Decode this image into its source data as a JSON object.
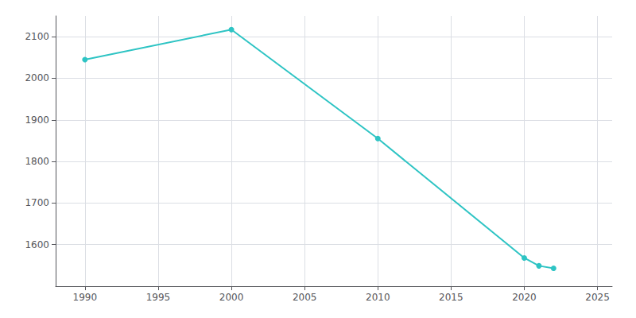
{
  "chart_data": {
    "type": "line",
    "x": [
      1990,
      2000,
      2010,
      2020,
      2021,
      2022
    ],
    "values": [
      2045,
      2117,
      1855,
      1568,
      1549,
      1543
    ],
    "color": "#2ec4c4",
    "marker": "circle",
    "xlim": [
      1988,
      2026
    ],
    "ylim": [
      1500,
      2150
    ],
    "xticks": [
      1990,
      1995,
      2000,
      2005,
      2010,
      2015,
      2020,
      2025
    ],
    "yticks": [
      1600,
      1700,
      1800,
      1900,
      2000,
      2100
    ],
    "grid": true
  }
}
